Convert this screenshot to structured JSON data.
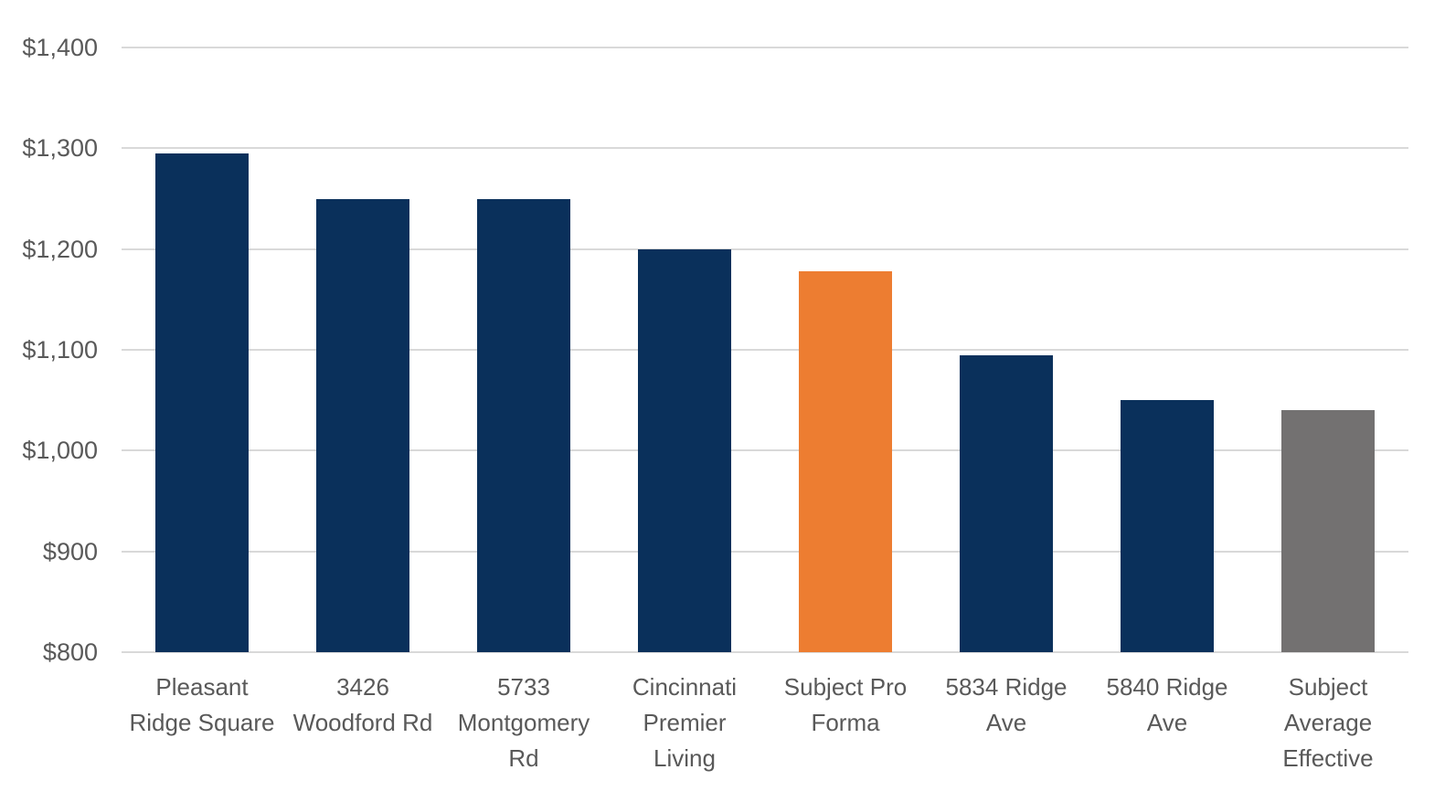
{
  "chart_data": {
    "type": "bar",
    "title": "",
    "xlabel": "",
    "ylabel": "",
    "legend": "none",
    "grid": true,
    "categories": [
      "Pleasant Ridge Square",
      "3426 Woodford Rd",
      "5733 Montgomery Rd",
      "Cincinnati Premier Living",
      "Subject Pro Forma",
      "5834 Ridge Ave",
      "5840 Ridge Ave",
      "Subject Average Effective"
    ],
    "category_label_lines": [
      [
        "Pleasant",
        "Ridge Square"
      ],
      [
        "3426",
        "Woodford Rd"
      ],
      [
        "5733",
        "Montgomery",
        "Rd"
      ],
      [
        "Cincinnati",
        "Premier",
        "Living"
      ],
      [
        "Subject Pro",
        "Forma"
      ],
      [
        "5834 Ridge",
        "Ave"
      ],
      [
        "5840 Ridge",
        "Ave"
      ],
      [
        "Subject",
        "Average",
        "Effective"
      ]
    ],
    "values": [
      1295,
      1250,
      1250,
      1200,
      1178,
      1095,
      1050,
      1040
    ],
    "bar_colors": [
      "#0A305B",
      "#0A305B",
      "#0A305B",
      "#0A305B",
      "#ED7D31",
      "#0A305B",
      "#0A305B",
      "#737171"
    ],
    "ylim": [
      800,
      1400
    ],
    "ytick_interval": 100,
    "ytick_labels": [
      "$800",
      "$900",
      "$1,000",
      "$1,100",
      "$1,200",
      "$1,300",
      "$1,400"
    ],
    "colors": {
      "bar_default": "#0A305B",
      "bar_highlight": "#ED7D31",
      "bar_neutral": "#737171",
      "axis_text": "#595959",
      "gridline": "#D9D9D9",
      "background": "#FFFFFF"
    }
  }
}
